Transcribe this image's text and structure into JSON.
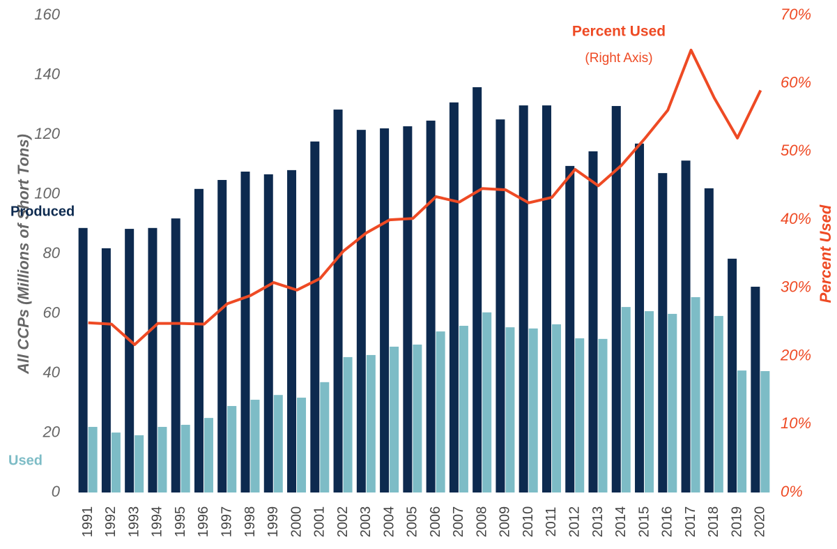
{
  "chart_data": {
    "type": "bar",
    "y_axis_label": "All CCPs (Millions of Short Tons)",
    "y2_axis_label": "Percent Used",
    "annotations": [
      "Produced",
      "Used",
      "Percent Used",
      "(Right Axis)"
    ],
    "categories": [
      "1991",
      "1992",
      "1993",
      "1994",
      "1995",
      "1996",
      "1997",
      "1998",
      "1999",
      "2000",
      "2001",
      "2002",
      "2003",
      "2004",
      "2005",
      "2006",
      "2007",
      "2008",
      "2009",
      "2010",
      "2011",
      "2012",
      "2013",
      "2014",
      "2015",
      "2016",
      "2017",
      "2018",
      "2019",
      "2020"
    ],
    "series": [
      {
        "name": "Produced",
        "type": "bar",
        "color": "#0d2a4f",
        "values": [
          88.7,
          81.9,
          88.4,
          88.7,
          91.9,
          101.8,
          104.8,
          107.6,
          106.7,
          108.1,
          117.7,
          128.4,
          121.6,
          122.1,
          122.8,
          124.7,
          130.8,
          135.9,
          125.1,
          129.8,
          129.8,
          109.5,
          114.4,
          129.6,
          117,
          107.1,
          111.3,
          102,
          78.4,
          69
        ]
      },
      {
        "name": "Used",
        "type": "bar",
        "color": "#7dbcc6",
        "values": [
          22,
          20.1,
          19.2,
          22,
          22.7,
          25,
          29,
          31.1,
          32.7,
          31.8,
          37,
          45.4,
          46.1,
          48.9,
          49.6,
          54,
          55.9,
          60.4,
          55.4,
          55,
          56.4,
          51.7,
          51.5,
          62.2,
          60.8,
          59.9,
          65.5,
          59.2,
          40.9,
          40.7
        ]
      },
      {
        "name": "Percent Used",
        "type": "line",
        "axis": "y2",
        "color": "#ee4a24",
        "values": [
          24.9,
          24.7,
          21.7,
          24.8,
          24.8,
          24.7,
          27.7,
          28.9,
          30.8,
          29.7,
          31.4,
          35.4,
          38.1,
          40,
          40.2,
          43.4,
          42.6,
          44.6,
          44.4,
          42.5,
          43.3,
          47.4,
          45,
          48,
          51.9,
          56.1,
          64.9,
          57.9,
          52,
          59
        ]
      }
    ],
    "ylim": [
      0,
      160
    ],
    "yticks": [
      0,
      20,
      40,
      60,
      80,
      100,
      120,
      140,
      160
    ],
    "y2lim": [
      0,
      70
    ],
    "y2ticks": [
      {
        "value": 0,
        "label": "0%"
      },
      {
        "value": 10,
        "label": "10%"
      },
      {
        "value": 20,
        "label": "20%"
      },
      {
        "value": 30,
        "label": "30%"
      },
      {
        "value": 40,
        "label": "40%"
      },
      {
        "value": 50,
        "label": "50%"
      },
      {
        "value": 60,
        "label": "60%"
      },
      {
        "value": 70,
        "label": "70%"
      }
    ],
    "grid": false
  }
}
